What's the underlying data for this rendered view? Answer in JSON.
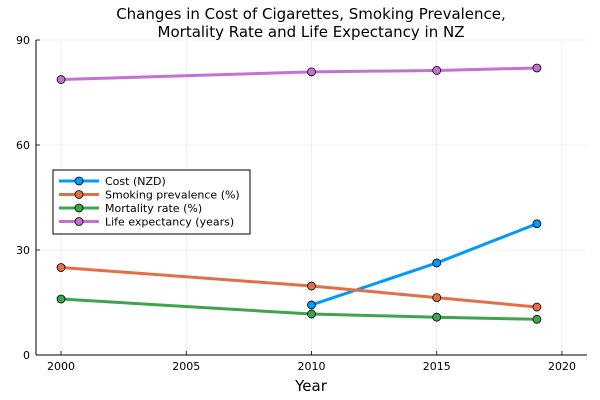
{
  "chart_data": {
    "type": "line",
    "title_lines": [
      "Changes in Cost of Cigarettes, Smoking Prevalence,",
      "Mortality Rate and Life Expectancy in NZ"
    ],
    "xlabel": "Year",
    "ylabel": "",
    "xlim": [
      1999,
      2021
    ],
    "ylim": [
      0,
      90
    ],
    "x_ticks": [
      2000,
      2005,
      2010,
      2015,
      2020
    ],
    "y_ticks": [
      0,
      30,
      60,
      90
    ],
    "grid": true,
    "legend_position": "middle-left",
    "series": [
      {
        "name": "Cost (NZD)",
        "color": "#009AFA",
        "points": [
          [
            2010,
            14.3
          ],
          [
            2015,
            26.3
          ],
          [
            2019,
            37.5
          ]
        ]
      },
      {
        "name": "Smoking prevalence (%)",
        "color": "#E36F47",
        "points": [
          [
            2000,
            25.0
          ],
          [
            2010,
            19.7
          ],
          [
            2015,
            16.4
          ],
          [
            2019,
            13.7
          ]
        ]
      },
      {
        "name": "Mortality rate (%)",
        "color": "#3EA44E",
        "points": [
          [
            2000,
            16.0
          ],
          [
            2010,
            11.7
          ],
          [
            2015,
            10.8
          ],
          [
            2019,
            10.2
          ]
        ]
      },
      {
        "name": "Life expectancy (years)",
        "color": "#C371D2",
        "points": [
          [
            2000,
            78.7
          ],
          [
            2010,
            80.9
          ],
          [
            2015,
            81.3
          ],
          [
            2019,
            82.0
          ]
        ]
      }
    ]
  }
}
